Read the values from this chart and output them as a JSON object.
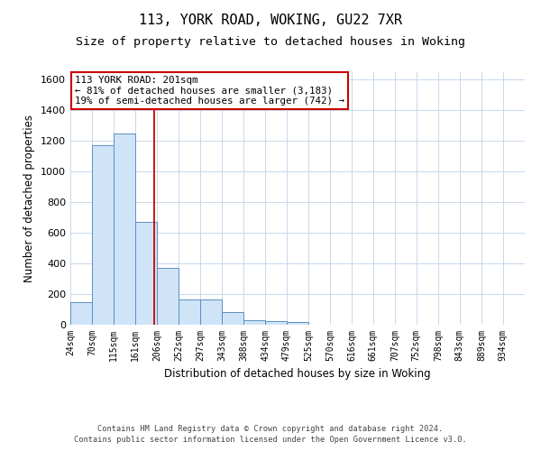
{
  "title1": "113, YORK ROAD, WOKING, GU22 7XR",
  "title2": "Size of property relative to detached houses in Woking",
  "xlabel": "Distribution of detached houses by size in Woking",
  "ylabel": "Number of detached properties",
  "bin_labels": [
    "24sqm",
    "70sqm",
    "115sqm",
    "161sqm",
    "206sqm",
    "252sqm",
    "297sqm",
    "343sqm",
    "388sqm",
    "434sqm",
    "479sqm",
    "525sqm",
    "570sqm",
    "616sqm",
    "661sqm",
    "707sqm",
    "752sqm",
    "798sqm",
    "843sqm",
    "889sqm",
    "934sqm"
  ],
  "bin_edges": [
    24,
    70,
    115,
    161,
    206,
    252,
    297,
    343,
    388,
    434,
    479,
    525,
    570,
    616,
    661,
    707,
    752,
    798,
    843,
    889,
    934
  ],
  "bar_heights": [
    150,
    1175,
    1250,
    670,
    370,
    165,
    165,
    80,
    30,
    22,
    20,
    0,
    0,
    0,
    0,
    0,
    0,
    0,
    0,
    0
  ],
  "bar_color": "#d0e4f7",
  "bar_edge_color": "#5a8fc0",
  "property_line_x": 201,
  "property_line_color": "#cc0000",
  "annotation_line1": "113 YORK ROAD: 201sqm",
  "annotation_line2": "← 81% of detached houses are smaller (3,183)",
  "annotation_line3": "19% of semi-detached houses are larger (742) →",
  "annotation_box_color": "#ffffff",
  "annotation_box_edge": "#cc0000",
  "ylim": [
    0,
    1650
  ],
  "yticks": [
    0,
    200,
    400,
    600,
    800,
    1000,
    1200,
    1400,
    1600
  ],
  "footer1": "Contains HM Land Registry data © Crown copyright and database right 2024.",
  "footer2": "Contains public sector information licensed under the Open Government Licence v3.0.",
  "bg_color": "#ffffff",
  "grid_color": "#c8d8ec",
  "title_fontsize": 11,
  "subtitle_fontsize": 9.5
}
